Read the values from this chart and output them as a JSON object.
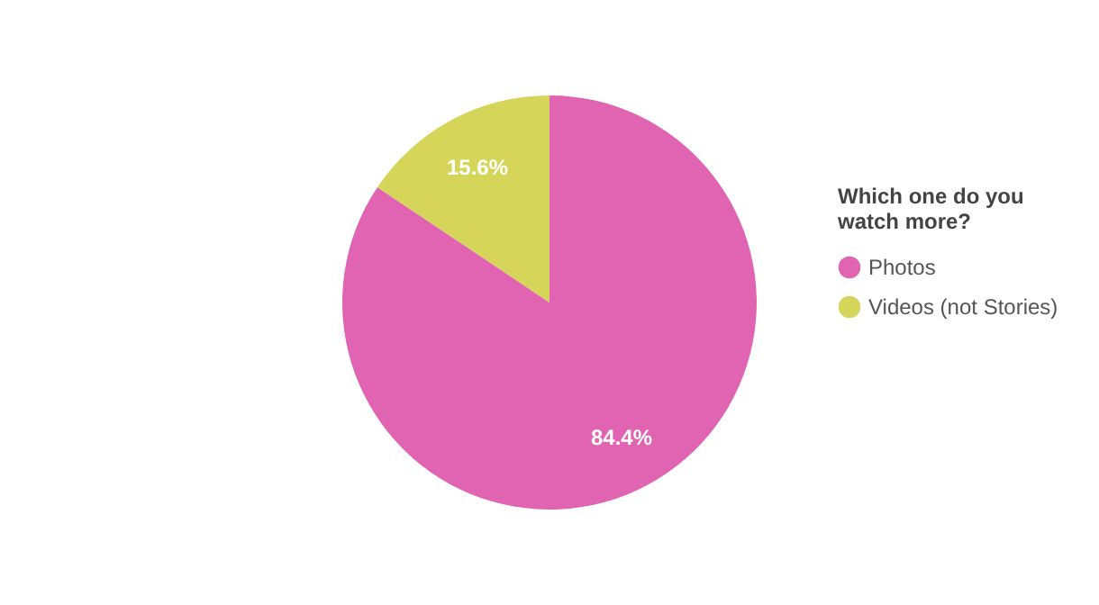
{
  "chart_data": {
    "type": "pie",
    "legend_title": "Which one do you watch more?",
    "categories": [
      "Photos",
      "Videos (not Stories)"
    ],
    "values": [
      84.4,
      15.6
    ],
    "colors": [
      "#e064b2",
      "#d5d55a"
    ],
    "value_labels": [
      "84.4%",
      "15.6%"
    ],
    "legend": "right"
  }
}
